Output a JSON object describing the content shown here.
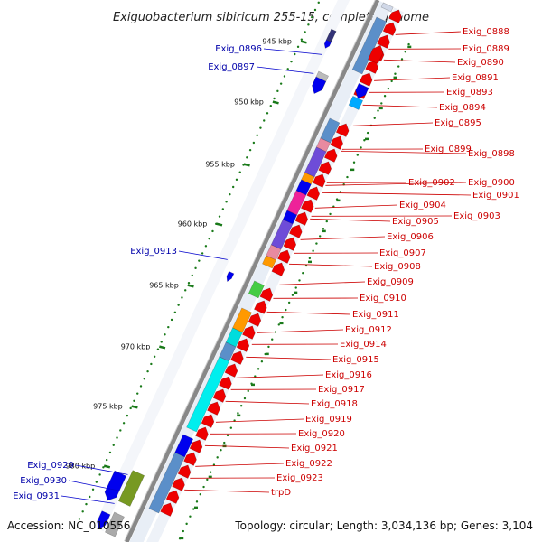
{
  "title": "Exiguobacterium sibiricum 255-15, complete genome",
  "footer": {
    "accession": "Accession: NC_010556",
    "topology": "Topology: circular; Length: 3,034,136 bp; Genes: 3,104"
  },
  "ticks": [
    "945 kbp",
    "950 kbp",
    "955 kbp",
    "960 kbp",
    "965 kbp",
    "970 kbp",
    "975 kbp",
    "980 kbp"
  ],
  "right_labels": [
    "Exig_0888",
    "Exig_0889",
    "Exig_0890",
    "Exig_0891",
    "Exig_0893",
    "Exig_0894",
    "Exig_0895",
    "Exig_0899",
    "Exig_0898",
    "Exig_0900",
    "Exig_0902",
    "Exig_0901",
    "Exig_0904",
    "Exig_0903",
    "Exig_0905",
    "Exig_0906",
    "Exig_0907",
    "Exig_0908",
    "Exig_0909",
    "Exig_0910",
    "Exig_0911",
    "Exig_0912",
    "Exig_0914",
    "Exig_0915",
    "Exig_0916",
    "Exig_0917",
    "Exig_0918",
    "Exig_0919",
    "Exig_0920",
    "Exig_0921",
    "Exig_0922",
    "Exig_0923",
    "trpD"
  ],
  "left_labels": [
    "Exig_0896",
    "Exig_0897",
    "Exig_0913",
    "Exig_0929",
    "Exig_0930",
    "Exig_0931"
  ],
  "colors": {
    "forward_gene": "#ee0000",
    "reverse_gene": "#0000ee",
    "backbone": "#888888",
    "tick": "#1a7a1a",
    "right_label": "#cc0000",
    "left_label": "#0000aa"
  }
}
